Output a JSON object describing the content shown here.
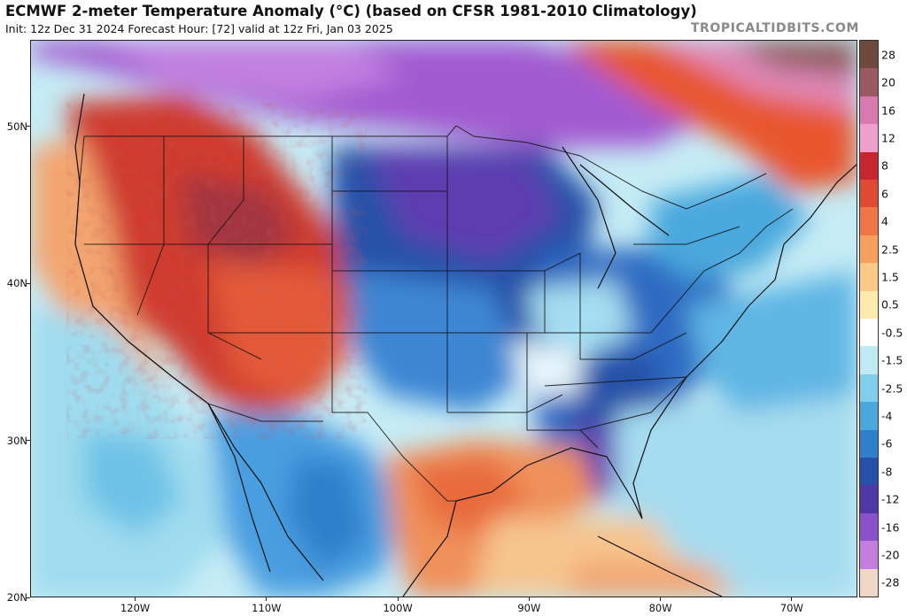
{
  "header": {
    "title": "ECMWF 2-meter Temperature Anomaly (°C) (based on CFSR 1981-2010 Climatology)",
    "subtitle": "Init: 12z Dec 31 2024   Forecast Hour: [72]   valid at 12z Fri, Jan 03 2025",
    "watermark": "TROPICALTIDBITS.COM"
  },
  "map": {
    "lat_range": [
      20,
      55.5
    ],
    "lon_range": [
      -128,
      -65
    ],
    "lat_labels": [
      "50N",
      "40N",
      "30N",
      "20N"
    ],
    "lat_values": [
      50,
      40,
      30,
      20
    ],
    "lon_labels": [
      "120W",
      "110W",
      "100W",
      "90W",
      "80W",
      "70W"
    ],
    "lon_values": [
      -120,
      -110,
      -100,
      -90,
      -80,
      -70
    ]
  },
  "colorbar": {
    "labels": [
      "28",
      "20",
      "16",
      "12",
      "8",
      "6",
      "4",
      "2.5",
      "1.5",
      "0.5",
      "-0.5",
      "-1.5",
      "-2.5",
      "-4",
      "-6",
      "-8",
      "-12",
      "-16",
      "-20",
      "-28"
    ],
    "colors": [
      "#6e4a3c",
      "#9b5a62",
      "#d87ab0",
      "#f09ecb",
      "#c8262e",
      "#de4a33",
      "#ee7648",
      "#f6a060",
      "#fac887",
      "#fdeaaf",
      "#ffffff",
      "#bdeaf3",
      "#82cdea",
      "#4aa8dd",
      "#2f7fcb",
      "#2551a8",
      "#4f37a4",
      "#8a52c8",
      "#c47ee0",
      "#f0d8c8"
    ]
  }
}
